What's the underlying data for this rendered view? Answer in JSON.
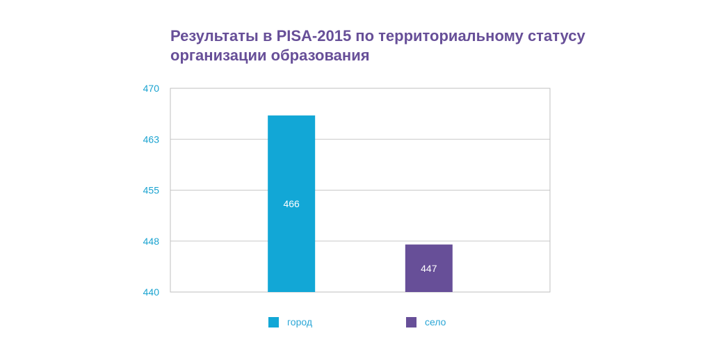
{
  "chart_data": {
    "type": "bar",
    "title_lines": [
      "Результаты в PISA-2015 по территориальному статусу",
      "организации образования"
    ],
    "categories": [
      "город",
      "село"
    ],
    "values": [
      466,
      447
    ],
    "colors": [
      "#12a7d6",
      "#674f98"
    ],
    "y_ticks": [
      "470",
      "463",
      "455",
      "448",
      "440"
    ],
    "ylim": [
      440,
      470
    ],
    "grid": true,
    "legend_position": "bottom",
    "legend": [
      {
        "label": "город",
        "color": "#12a7d6"
      },
      {
        "label": "село",
        "color": "#674f98"
      }
    ]
  }
}
